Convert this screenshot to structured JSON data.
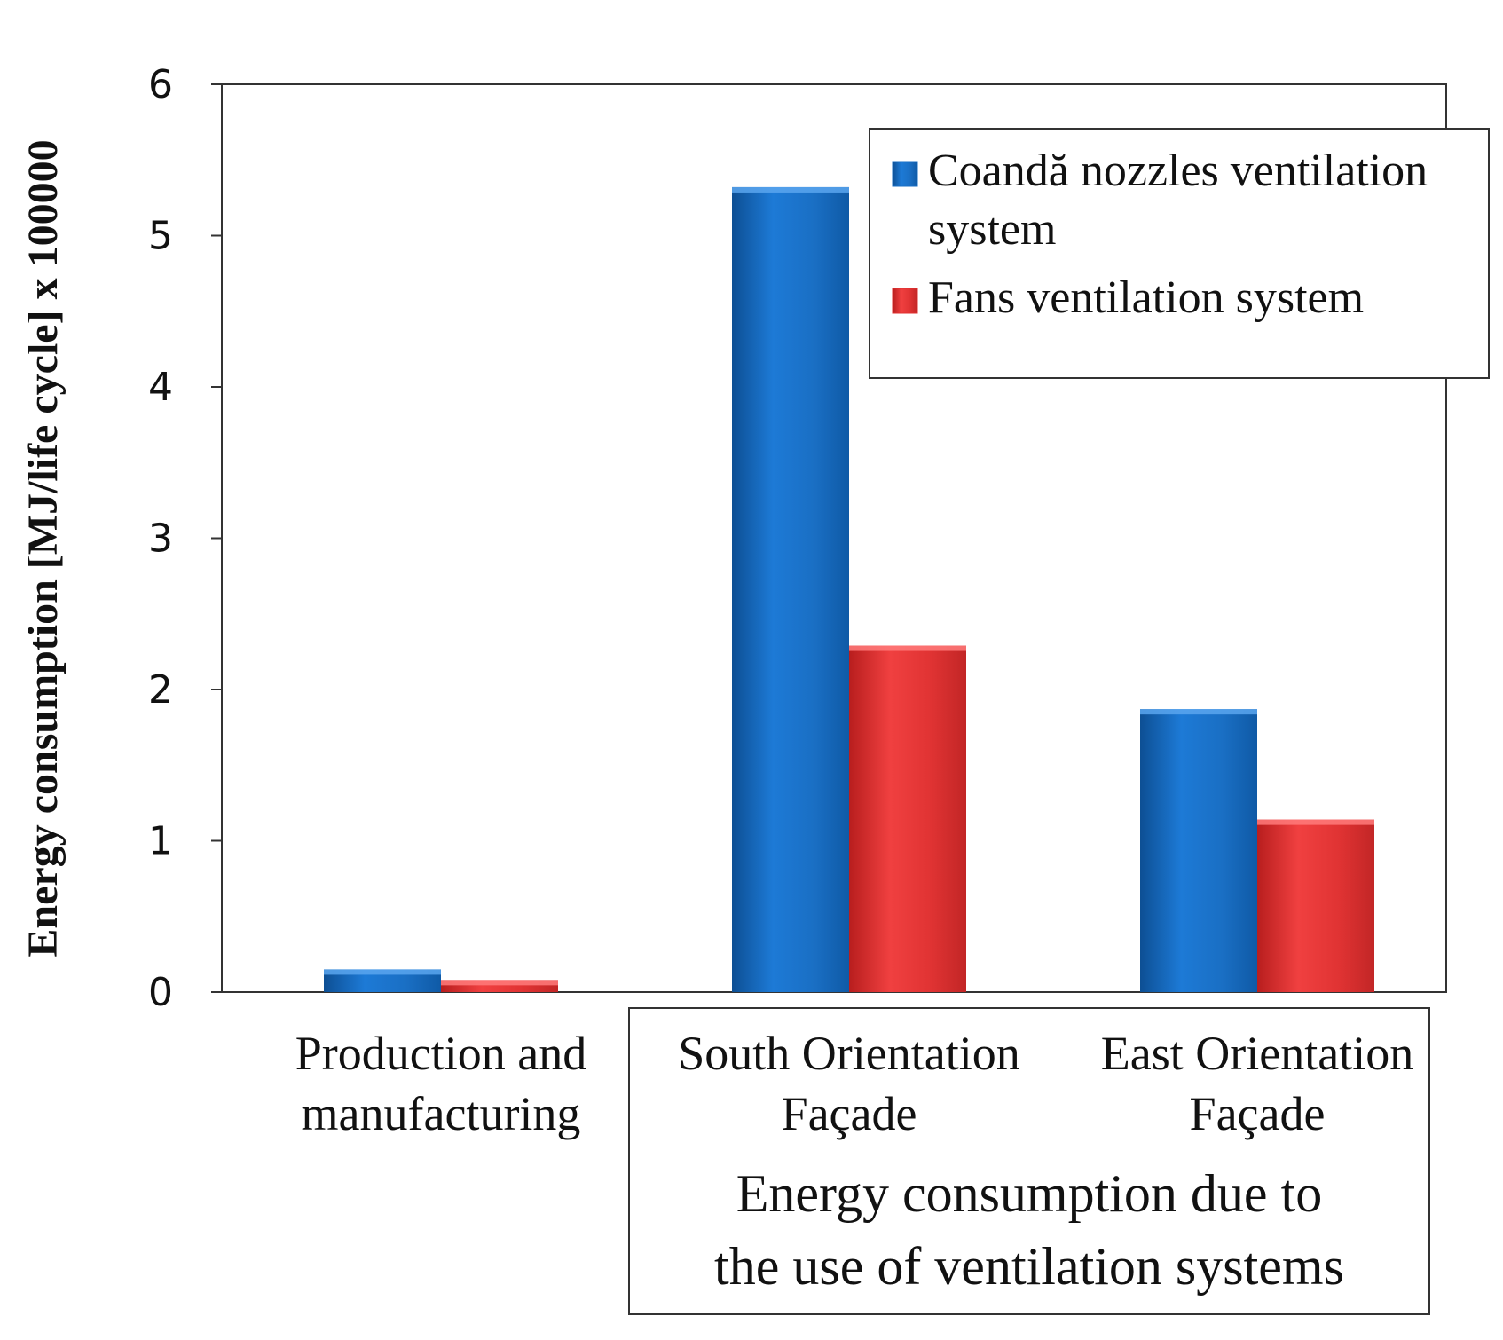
{
  "chart_data": {
    "type": "bar",
    "title": "",
    "ylabel": "Energy consumption [MJ/life cycle]    x 100000",
    "xlabel": "",
    "ylim": [
      0,
      6
    ],
    "yticks": [
      "0",
      "1",
      "2",
      "3",
      "4",
      "5",
      "6"
    ],
    "grid": false,
    "categories": [
      [
        "Production and",
        "manufacturing"
      ],
      [
        "South Orientation",
        "Façade"
      ],
      [
        "East Orientation",
        "Façade"
      ]
    ],
    "group_label": [
      "Energy consumption due to",
      "the use of ventilation systems"
    ],
    "series": [
      {
        "name": [
          "Coandă nozzles ventilation",
          "system"
        ],
        "values": [
          0.15,
          5.32,
          1.87
        ],
        "color": "#1a6fc4"
      },
      {
        "name": [
          "Fans ventilation system"
        ],
        "values": [
          0.08,
          2.29,
          1.14
        ],
        "color": "#e03030"
      }
    ],
    "legend_position": "top-right"
  }
}
